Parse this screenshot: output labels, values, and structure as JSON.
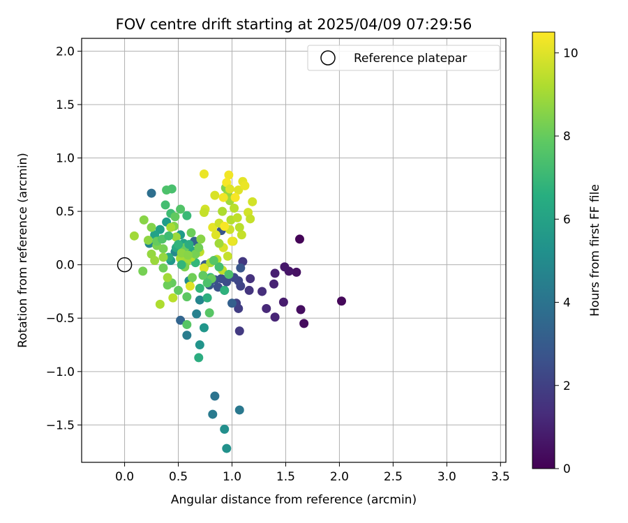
{
  "chart_data": {
    "type": "scatter",
    "title": "FOV centre drift starting at 2025/04/09 07:29:56",
    "xlabel": "Angular distance from reference (arcmin)",
    "ylabel": "Rotation from reference (arcmin)",
    "xlim": [
      -0.4,
      3.55
    ],
    "ylim": [
      -1.85,
      2.12
    ],
    "xticks": [
      "0.0",
      "0.5",
      "1.0",
      "1.5",
      "2.0",
      "2.5",
      "3.0",
      "3.5"
    ],
    "yticks": [
      "2.0",
      "1.5",
      "1.0",
      "0.5",
      "0.0",
      "−0.5",
      "−1.0",
      "−1.5"
    ],
    "grid": true,
    "legend": {
      "placement": "top-right",
      "entries": [
        "Reference platepar"
      ]
    },
    "reference_point": {
      "name": "Reference platepar",
      "x": 0.0,
      "y": 0.0
    },
    "colorbar": {
      "label": "Hours from first FF file",
      "range": [
        0,
        10.5
      ],
      "ticks": [
        "0",
        "2",
        "4",
        "6",
        "8",
        "10"
      ],
      "colormap": "viridis"
    },
    "points": [
      [
        1.63,
        0.24,
        0.1
      ],
      [
        2.02,
        -0.34,
        0.2
      ],
      [
        1.67,
        -0.55,
        0.3
      ],
      [
        1.64,
        -0.42,
        0.4
      ],
      [
        1.6,
        -0.07,
        0.5
      ],
      [
        1.53,
        -0.06,
        0.6
      ],
      [
        1.49,
        -0.02,
        0.7
      ],
      [
        1.48,
        -0.35,
        0.8
      ],
      [
        1.4,
        -0.08,
        0.9
      ],
      [
        1.39,
        -0.18,
        1.0
      ],
      [
        1.4,
        -0.49,
        1.1
      ],
      [
        1.32,
        -0.41,
        1.2
      ],
      [
        1.28,
        -0.25,
        1.4
      ],
      [
        1.17,
        -0.13,
        1.5
      ],
      [
        1.16,
        -0.24,
        1.6
      ],
      [
        1.1,
        0.03,
        1.7
      ],
      [
        1.07,
        -0.62,
        1.8
      ],
      [
        1.06,
        -0.41,
        1.9
      ],
      [
        1.04,
        -0.36,
        2.0
      ],
      [
        1.08,
        -0.2,
        2.1
      ],
      [
        1.06,
        -0.15,
        2.2
      ],
      [
        1.02,
        -0.12,
        2.3
      ],
      [
        0.95,
        -0.16,
        2.4
      ],
      [
        0.9,
        -0.13,
        2.5
      ],
      [
        0.87,
        -0.21,
        2.6
      ],
      [
        0.84,
        -0.14,
        2.7
      ],
      [
        1.08,
        -0.03,
        2.8
      ],
      [
        0.79,
        -0.19,
        2.9
      ],
      [
        0.75,
        0.0,
        3.0
      ],
      [
        0.93,
        -0.24,
        3.1
      ],
      [
        0.9,
        0.32,
        2.8
      ],
      [
        1.0,
        -0.36,
        3.2
      ],
      [
        0.65,
        0.22,
        3.3
      ],
      [
        0.52,
        -0.52,
        3.4
      ],
      [
        0.57,
        0.1,
        3.6
      ],
      [
        0.25,
        0.67,
        3.8
      ],
      [
        0.84,
        -1.23,
        4.0
      ],
      [
        1.07,
        -1.36,
        4.2
      ],
      [
        0.82,
        -1.4,
        4.3
      ],
      [
        0.58,
        -0.66,
        4.4
      ],
      [
        0.67,
        -0.46,
        4.6
      ],
      [
        0.7,
        -0.33,
        4.8
      ],
      [
        0.23,
        0.2,
        4.9
      ],
      [
        0.47,
        0.12,
        5.0
      ],
      [
        0.6,
        -0.15,
        5.1
      ],
      [
        0.93,
        -1.54,
        5.2
      ],
      [
        0.95,
        -1.72,
        5.3
      ],
      [
        0.7,
        -0.75,
        5.4
      ],
      [
        0.74,
        -0.59,
        5.5
      ],
      [
        0.43,
        0.04,
        5.6
      ],
      [
        0.52,
        0.28,
        5.7
      ],
      [
        0.39,
        0.4,
        5.8
      ],
      [
        0.33,
        0.33,
        5.9
      ],
      [
        0.28,
        0.28,
        6.0
      ],
      [
        0.55,
        0.2,
        6.1
      ],
      [
        0.63,
        0.13,
        6.2
      ],
      [
        0.48,
        0.16,
        6.3
      ],
      [
        0.41,
        0.07,
        6.4
      ],
      [
        0.69,
        -0.87,
        6.5
      ],
      [
        0.77,
        -0.31,
        6.6
      ],
      [
        0.93,
        -0.24,
        6.7
      ],
      [
        0.8,
        -0.12,
        6.8
      ],
      [
        0.7,
        -0.22,
        6.9
      ],
      [
        0.66,
        0.02,
        7.0
      ],
      [
        0.58,
        0.46,
        7.1
      ],
      [
        0.43,
        0.48,
        7.2
      ],
      [
        0.38,
        0.56,
        7.3
      ],
      [
        0.44,
        0.71,
        7.4
      ],
      [
        0.39,
        0.7,
        7.5
      ],
      [
        0.52,
        0.52,
        7.6
      ],
      [
        0.58,
        -0.56,
        7.7
      ],
      [
        0.58,
        -0.3,
        7.8
      ],
      [
        0.5,
        -0.24,
        7.9
      ],
      [
        0.44,
        -0.17,
        8.0
      ],
      [
        0.4,
        -0.19,
        8.1
      ],
      [
        0.36,
        -0.03,
        8.2
      ],
      [
        0.36,
        0.15,
        8.3
      ],
      [
        0.3,
        0.18,
        8.4
      ],
      [
        0.25,
        0.35,
        8.5
      ],
      [
        0.18,
        0.42,
        8.6
      ],
      [
        0.22,
        0.23,
        8.7
      ],
      [
        0.25,
        0.1,
        8.8
      ],
      [
        0.28,
        0.04,
        8.9
      ],
      [
        0.09,
        0.27,
        9.0
      ],
      [
        0.17,
        -0.06,
        8.3
      ],
      [
        0.46,
        0.36,
        8.5
      ],
      [
        0.47,
        0.45,
        7.9
      ],
      [
        0.56,
        0.16,
        8.0
      ],
      [
        0.62,
        0.3,
        8.1
      ],
      [
        0.79,
        -0.45,
        7.7
      ],
      [
        0.94,
        0.72,
        8.5
      ],
      [
        0.96,
        0.66,
        8.8
      ],
      [
        0.98,
        0.6,
        9.0
      ],
      [
        0.91,
        0.5,
        9.2
      ],
      [
        0.99,
        0.42,
        9.3
      ],
      [
        1.02,
        0.53,
        9.4
      ],
      [
        1.05,
        0.44,
        9.5
      ],
      [
        1.09,
        0.28,
        9.6
      ],
      [
        0.98,
        0.33,
        9.7
      ],
      [
        1.01,
        0.22,
        9.8
      ],
      [
        0.92,
        0.16,
        9.9
      ],
      [
        1.06,
        0.7,
        10.0
      ],
      [
        1.1,
        0.78,
        10.1
      ],
      [
        1.12,
        0.74,
        10.2
      ],
      [
        1.15,
        0.49,
        9.8
      ],
      [
        1.17,
        0.43,
        9.6
      ],
      [
        1.19,
        0.59,
        9.8
      ],
      [
        0.97,
        0.84,
        10.3
      ],
      [
        0.95,
        0.77,
        10.4
      ],
      [
        1.03,
        0.63,
        10.4
      ],
      [
        0.75,
        0.52,
        9.8
      ],
      [
        0.74,
        0.49,
        9.6
      ],
      [
        0.74,
        0.85,
        10.2
      ],
      [
        0.84,
        0.65,
        9.9
      ],
      [
        0.82,
        0.35,
        10.1
      ],
      [
        0.85,
        0.28,
        10.0
      ],
      [
        0.88,
        0.39,
        9.7
      ],
      [
        0.96,
        0.08,
        9.6
      ],
      [
        0.86,
        0.05,
        9.4
      ],
      [
        0.91,
        -0.05,
        9.5
      ],
      [
        0.74,
        -0.03,
        10.0
      ],
      [
        0.61,
        -0.2,
        10.0
      ],
      [
        0.45,
        -0.31,
        9.4
      ],
      [
        0.33,
        -0.37,
        9.2
      ],
      [
        0.4,
        -0.12,
        9.0
      ],
      [
        0.52,
        0.06,
        9.1
      ],
      [
        0.62,
        0.07,
        9.3
      ],
      [
        0.7,
        0.12,
        9.5
      ],
      [
        0.8,
        0.02,
        9.2
      ],
      [
        0.88,
        0.2,
        9.0
      ],
      [
        1.07,
        0.35,
        9.4
      ],
      [
        1.0,
        0.22,
        10.2
      ],
      [
        0.92,
        0.63,
        10.3
      ],
      [
        0.98,
        0.71,
        10.0
      ],
      [
        0.93,
        0.36,
        10.4
      ],
      [
        0.53,
        0.11,
        8.7
      ],
      [
        0.48,
        0.26,
        8.9
      ],
      [
        0.58,
        0.03,
        9.0
      ],
      [
        0.43,
        0.35,
        9.1
      ],
      [
        0.71,
        0.24,
        8.6
      ],
      [
        0.66,
        0.1,
        8.3
      ],
      [
        0.81,
        -0.13,
        8.0
      ],
      [
        0.56,
        -0.02,
        8.4
      ],
      [
        0.63,
        -0.12,
        8.2
      ],
      [
        0.73,
        -0.1,
        7.9
      ],
      [
        0.77,
        -0.17,
        7.5
      ],
      [
        0.69,
        0.16,
        8.2
      ],
      [
        0.59,
        0.09,
        8.6
      ],
      [
        0.36,
        0.07,
        8.8
      ],
      [
        0.3,
        0.22,
        8.0
      ],
      [
        0.35,
        0.24,
        7.6
      ],
      [
        0.41,
        0.27,
        7.2
      ],
      [
        0.5,
        0.19,
        6.8
      ],
      [
        0.6,
        0.19,
        6.5
      ],
      [
        0.53,
        0.0,
        6.9
      ],
      [
        0.88,
        -0.02,
        7.3
      ],
      [
        0.83,
        0.04,
        7.7
      ],
      [
        0.97,
        -0.09,
        7.5
      ]
    ]
  }
}
